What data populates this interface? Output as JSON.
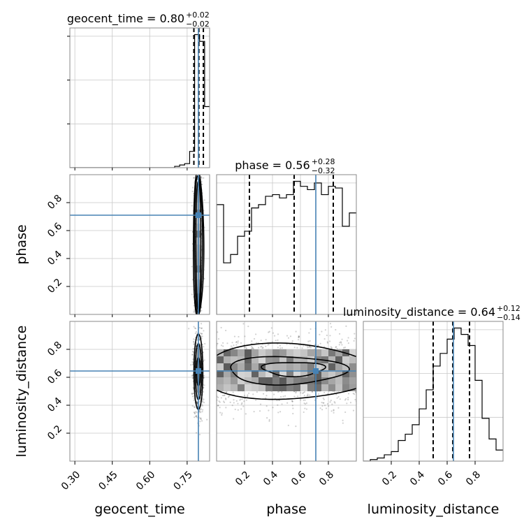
{
  "chart_data": {
    "type": "corner",
    "parameters": [
      "geocent_time",
      "phase",
      "luminosity_distance"
    ],
    "truth_color": "#4682b4",
    "titles": [
      {
        "param": "geocent_time",
        "text": "geocent_time = 0.80",
        "plus": "+0.02",
        "minus": "−0.02"
      },
      {
        "param": "phase",
        "text": "phase = 0.56",
        "plus": "+0.28",
        "minus": "−0.32"
      },
      {
        "param": "luminosity_distance",
        "text": "luminosity_distance = 0.64",
        "plus": "+0.12",
        "minus": "−0.14"
      }
    ],
    "axis_labels": {
      "x": [
        "geocent_time",
        "phase",
        "luminosity_distance"
      ],
      "y": [
        "phase",
        "luminosity_distance"
      ]
    },
    "ranges": {
      "geocent_time": [
        0.28,
        0.84
      ],
      "phase": [
        0.0,
        1.0
      ],
      "luminosity_distance": [
        0.0,
        1.0
      ]
    },
    "x_ticks": {
      "geocent_time": {
        "values": [
          0.3,
          0.45,
          0.6,
          0.75
        ],
        "labels": [
          "0.30",
          "0.45",
          "0.60",
          "0.75"
        ]
      },
      "phase": {
        "values": [
          0.2,
          0.4,
          0.6,
          0.8
        ],
        "labels": [
          "0.2",
          "0.4",
          "0.6",
          "0.8"
        ]
      },
      "luminosity_distance": {
        "values": [
          0.2,
          0.4,
          0.6,
          0.8
        ],
        "labels": [
          "0.2",
          "0.4",
          "0.6",
          "0.8"
        ]
      }
    },
    "y_ticks": {
      "phase": {
        "values": [
          0.2,
          0.4,
          0.6,
          0.8
        ],
        "labels": [
          "0.2",
          "0.4",
          "0.6",
          "0.8"
        ]
      },
      "luminosity_distance": {
        "values": [
          0.2,
          0.4,
          0.6,
          0.8
        ],
        "labels": [
          "0.2",
          "0.4",
          "0.6",
          "0.8"
        ]
      }
    },
    "truths": {
      "geocent_time": 0.795,
      "phase": 0.71,
      "luminosity_distance": 0.645
    },
    "quantiles": {
      "geocent_time": [
        0.777,
        0.797,
        0.815
      ],
      "phase": [
        0.235,
        0.555,
        0.835
      ],
      "luminosity_distance": [
        0.5,
        0.64,
        0.76
      ]
    },
    "marginals": {
      "geocent_time": {
        "edges": [
          0.28,
          0.66,
          0.68,
          0.7,
          0.72,
          0.74,
          0.76,
          0.78,
          0.8,
          0.82,
          0.84
        ],
        "counts": [
          0,
          0,
          0,
          1,
          2,
          3,
          12,
          98,
          93,
          45
        ]
      },
      "phase": {
        "edges": [
          0,
          0.05,
          0.1,
          0.15,
          0.2,
          0.25,
          0.3,
          0.35,
          0.4,
          0.45,
          0.5,
          0.55,
          0.6,
          0.65,
          0.7,
          0.75,
          0.8,
          0.85,
          0.9,
          0.95,
          1.0
        ],
        "counts": [
          66,
          31,
          36,
          47,
          50,
          64,
          66,
          71,
          72,
          70,
          72,
          80,
          77,
          75,
          79,
          72,
          77,
          76,
          53,
          61
        ]
      },
      "luminosity_distance": {
        "edges": [
          0,
          0.05,
          0.1,
          0.15,
          0.2,
          0.25,
          0.3,
          0.35,
          0.4,
          0.45,
          0.5,
          0.55,
          0.6,
          0.65,
          0.7,
          0.75,
          0.8,
          0.85,
          0.9,
          0.95,
          1.0
        ],
        "counts": [
          0,
          1,
          2,
          4,
          6,
          13,
          17,
          23,
          33,
          45,
          60,
          68,
          77,
          84,
          80,
          73,
          51,
          27,
          14,
          7
        ]
      }
    },
    "grid": true
  }
}
